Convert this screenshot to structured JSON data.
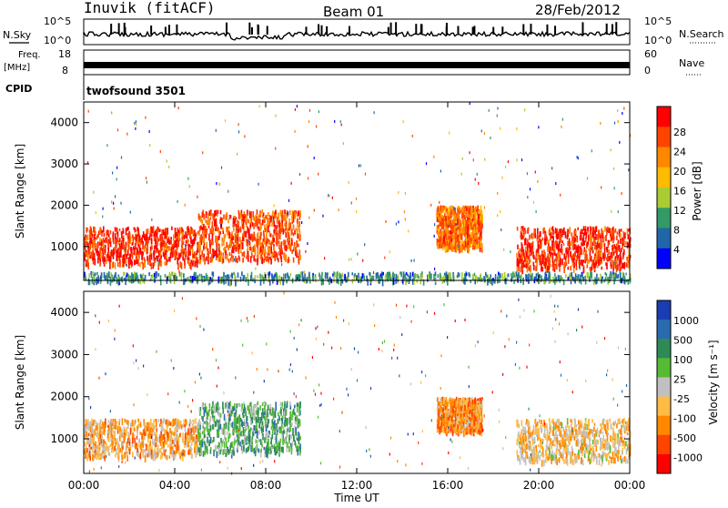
{
  "header": {
    "station": "Inuvik (fitACF)",
    "beam": "Beam 01",
    "date": "28/Feb/2012"
  },
  "top_panels": {
    "nsky_label": "N.Sky",
    "nsky_ticks": [
      "10^5",
      "10^0"
    ],
    "nsearch_label": "N.Search",
    "nsearch_ticks": [
      "10^5",
      "10^0"
    ],
    "freq_label": "Freq.",
    "freq_unit": "[MHz]",
    "freq_ticks": [
      "18",
      "8"
    ],
    "nave_label": "Nave",
    "nave_ticks": [
      "60",
      "0"
    ],
    "cpid_label": "CPID",
    "cpid_value": "twofsound 3501"
  },
  "power_panel": {
    "ylabel": "Slant Range [km]",
    "colorbar_label": "Power [dB]",
    "colorbar_ticks": [
      "28",
      "24",
      "20",
      "16",
      "12",
      "8",
      "4"
    ],
    "colors": [
      "#ff0000",
      "#ff4400",
      "#ff8800",
      "#ffbb00",
      "#aacc33",
      "#339966",
      "#2266aa",
      "#0000ff"
    ]
  },
  "velocity_panel": {
    "ylabel": "Slant Range [km]",
    "colorbar_label": "Velocity [m s⁻¹]",
    "colorbar_ticks": [
      "1000",
      "500",
      "100",
      "25",
      "-25",
      "-100",
      "-500",
      "-1000"
    ],
    "colors": [
      "#1a3cb4",
      "#2a6bb0",
      "#2e8b57",
      "#55bb33",
      "#c0c0c0",
      "#ffbb44",
      "#ff8800",
      "#ff4400",
      "#ff0000"
    ]
  },
  "x_axis": {
    "label": "Time UT",
    "ticks": [
      "00:00",
      "04:00",
      "08:00",
      "12:00",
      "16:00",
      "20:00",
      "00:00"
    ]
  },
  "chart_data": [
    {
      "type": "heatmap",
      "title": "Power [dB]",
      "xlabel": "Time UT",
      "ylabel": "Slant Range [km]",
      "x_range_hours": [
        0,
        24
      ],
      "y_range_km": [
        180,
        4500
      ],
      "y_ticks": [
        1000,
        2000,
        3000,
        4000
      ],
      "value_range": [
        0,
        30
      ],
      "regions": [
        {
          "t": [
            0,
            5
          ],
          "range_km": [
            600,
            1500
          ],
          "value": 26
        },
        {
          "t": [
            5,
            9.5
          ],
          "range_km": [
            700,
            1900
          ],
          "value": 24
        },
        {
          "t": [
            15.5,
            17.5
          ],
          "range_km": [
            1000,
            2000
          ],
          "value": 22
        },
        {
          "t": [
            19,
            24
          ],
          "range_km": [
            500,
            1500
          ],
          "value": 26
        },
        {
          "t": [
            0,
            24
          ],
          "range_km": [
            200,
            400
          ],
          "value": 8
        }
      ]
    },
    {
      "type": "heatmap",
      "title": "Velocity [m s⁻¹]",
      "xlabel": "Time UT",
      "ylabel": "Slant Range [km]",
      "x_range_hours": [
        0,
        24
      ],
      "y_range_km": [
        180,
        4500
      ],
      "y_ticks": [
        1000,
        2000,
        3000,
        4000
      ],
      "value_range": [
        -1000,
        1000
      ],
      "regions": [
        {
          "t": [
            0,
            5
          ],
          "range_km": [
            600,
            1500
          ],
          "value": -300
        },
        {
          "t": [
            5,
            9.5
          ],
          "range_km": [
            700,
            1900
          ],
          "value": 300
        },
        {
          "t": [
            15.5,
            17.5
          ],
          "range_km": [
            1200,
            2000
          ],
          "value": -400
        },
        {
          "t": [
            19,
            24
          ],
          "range_km": [
            500,
            1500
          ],
          "value": -200
        }
      ]
    }
  ]
}
